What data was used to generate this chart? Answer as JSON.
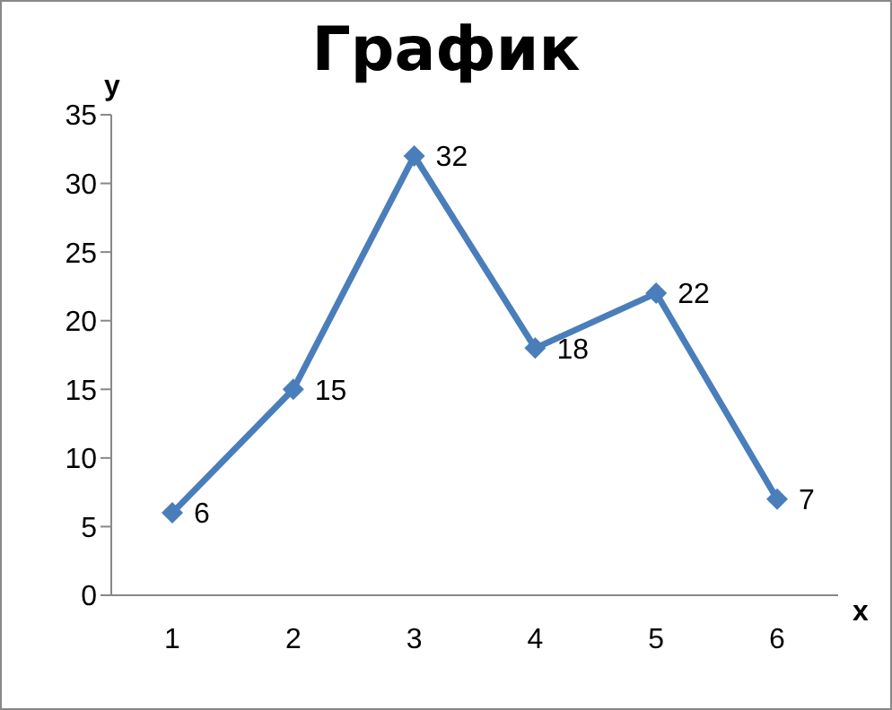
{
  "chart_data": {
    "type": "line",
    "title": "График",
    "xlabel": "x",
    "ylabel": "y",
    "categories": [
      "1",
      "2",
      "3",
      "4",
      "5",
      "6"
    ],
    "values": [
      6,
      15,
      32,
      18,
      22,
      7
    ],
    "color": "#4a7ebb",
    "ylim": [
      0,
      35
    ],
    "yticks": [
      0,
      5,
      10,
      15,
      20,
      25,
      30,
      35
    ],
    "data_labels": true,
    "marker": "diamond",
    "line_style": "solid"
  }
}
